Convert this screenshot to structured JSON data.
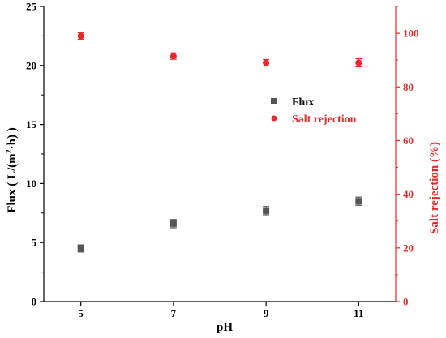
{
  "chart_data": {
    "type": "scatter",
    "xlabel": "pH",
    "ylabel_left": "Flux ( L/(m",
    "ylabel_left_sup": "2",
    "ylabel_left_mid": "·h) )",
    "ylabel_right": "Salt rejection (%)",
    "x_ticks": [
      "5",
      "7",
      "9",
      "11"
    ],
    "y_left_ticks": [
      "0",
      "5",
      "10",
      "15",
      "20",
      "25"
    ],
    "y_right_ticks": [
      "0",
      "20",
      "40",
      "60",
      "80",
      "100"
    ],
    "xlim": [
      4.2,
      11.8
    ],
    "ylim_left": [
      0,
      25
    ],
    "ylim_right": [
      0,
      110
    ],
    "grid": false,
    "legend_position": "right-middle",
    "series": [
      {
        "name": "Flux",
        "axis": "left",
        "marker": "square",
        "color": "#555555",
        "points": [
          {
            "x": 5,
            "y": 4.5,
            "err": 0.3
          },
          {
            "x": 7,
            "y": 6.6,
            "err": 0.35
          },
          {
            "x": 9,
            "y": 7.7,
            "err": 0.35
          },
          {
            "x": 11,
            "y": 8.5,
            "err": 0.35
          }
        ]
      },
      {
        "name": "Salt rejection",
        "axis": "right",
        "marker": "circle",
        "color": "#e8292a",
        "points": [
          {
            "x": 5,
            "y": 99,
            "err": 1.2
          },
          {
            "x": 7,
            "y": 91.5,
            "err": 1.2
          },
          {
            "x": 9,
            "y": 89,
            "err": 1.2
          },
          {
            "x": 11,
            "y": 89,
            "err": 1.5
          }
        ]
      }
    ],
    "colors": {
      "left_axis": "#000000",
      "right_axis": "#e8292a"
    }
  }
}
